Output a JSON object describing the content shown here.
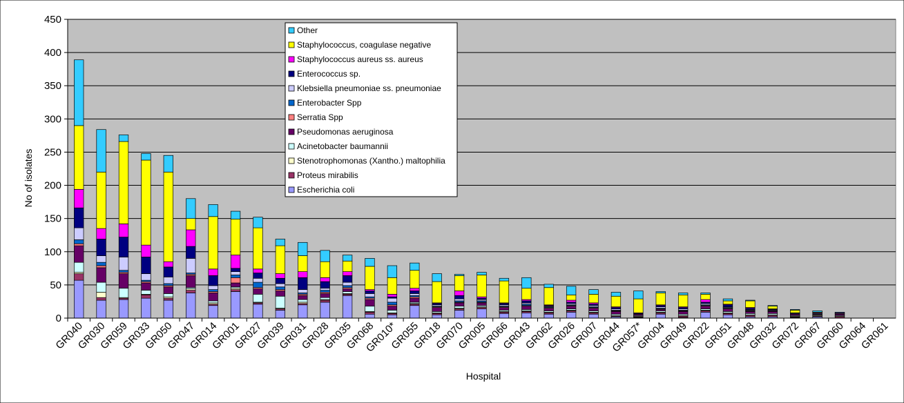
{
  "chart_data": {
    "type": "bar",
    "stacked": true,
    "xlabel": "Hospital",
    "ylabel": "No of isolates",
    "ylim": [
      0,
      450
    ],
    "yticks": [
      0,
      50,
      100,
      150,
      200,
      250,
      300,
      350,
      400,
      450
    ],
    "grid": "horizontal",
    "legend_position": "top-center",
    "categories": [
      "GR040",
      "GR030",
      "GR059",
      "GR033",
      "GR050",
      "GR047",
      "GR014",
      "GR001",
      "GR027",
      "GR039",
      "GR031",
      "GR028",
      "GR035",
      "GR068",
      "GR010*",
      "GR055",
      "GR018",
      "GR070",
      "GR005",
      "GR066",
      "GR043",
      "GR062",
      "GR026",
      "GR007",
      "GR044",
      "GR057*",
      "GR004",
      "GR049",
      "GR022",
      "GR051",
      "GR048",
      "GR032",
      "GR072",
      "GR067",
      "GR060",
      "GR064",
      "GR061"
    ],
    "series": [
      {
        "name": "Escherichia coli",
        "color": "#9999ff",
        "values": [
          57,
          27,
          28,
          30,
          27,
          38,
          19,
          40,
          21,
          12,
          20,
          24,
          34,
          6,
          5,
          19,
          5,
          12,
          14,
          7,
          8,
          6,
          9,
          6,
          2,
          1,
          6,
          1,
          9,
          5,
          2,
          2,
          1,
          2,
          0,
          0,
          0
        ]
      },
      {
        "name": "Proteus mirabilis",
        "color": "#993366",
        "values": [
          10,
          4,
          2,
          5,
          3,
          4,
          2,
          3,
          2,
          2,
          2,
          3,
          2,
          3,
          2,
          2,
          2,
          2,
          2,
          2,
          2,
          2,
          2,
          2,
          1,
          1,
          2,
          2,
          2,
          2,
          2,
          2,
          1,
          1,
          2,
          0,
          0
        ]
      },
      {
        "name": "Stenotrophomonas (Xantho.) maltophilia",
        "color": "#ffffcc",
        "values": [
          2,
          8,
          1,
          1,
          2,
          2,
          2,
          2,
          1,
          1,
          2,
          1,
          1,
          1,
          1,
          1,
          1,
          1,
          1,
          1,
          1,
          1,
          1,
          1,
          1,
          1,
          1,
          1,
          1,
          1,
          1,
          1,
          1,
          1,
          1,
          0,
          0
        ]
      },
      {
        "name": "Acinetobacter baumannii",
        "color": "#ccffff",
        "values": [
          15,
          15,
          14,
          6,
          5,
          2,
          3,
          2,
          12,
          18,
          4,
          3,
          3,
          8,
          4,
          2,
          2,
          3,
          2,
          2,
          2,
          2,
          2,
          2,
          2,
          1,
          2,
          2,
          2,
          2,
          2,
          2,
          1,
          1,
          1,
          0,
          0
        ]
      },
      {
        "name": "Pseudomonas aeruginosa",
        "color": "#660066",
        "values": [
          25,
          22,
          22,
          11,
          10,
          18,
          12,
          6,
          8,
          8,
          6,
          6,
          4,
          10,
          6,
          6,
          6,
          5,
          4,
          4,
          5,
          4,
          4,
          4,
          4,
          2,
          2,
          4,
          4,
          4,
          3,
          3,
          2,
          1,
          2,
          0,
          0
        ]
      },
      {
        "name": "Serratia Spp",
        "color": "#ff8080",
        "values": [
          3,
          3,
          2,
          2,
          2,
          2,
          2,
          8,
          2,
          2,
          2,
          2,
          2,
          2,
          2,
          2,
          1,
          1,
          1,
          1,
          1,
          1,
          1,
          1,
          1,
          0,
          1,
          1,
          1,
          1,
          1,
          1,
          0,
          0,
          0,
          0,
          0
        ]
      },
      {
        "name": "Enterobacter Spp",
        "color": "#0066cc",
        "values": [
          6,
          5,
          3,
          2,
          3,
          2,
          3,
          4,
          8,
          4,
          2,
          3,
          3,
          2,
          4,
          2,
          1,
          2,
          2,
          1,
          2,
          1,
          1,
          1,
          1,
          0,
          1,
          1,
          1,
          1,
          1,
          1,
          0,
          0,
          0,
          0,
          0
        ]
      },
      {
        "name": "Klebsiella pneumoniae ss. pneumoniae",
        "color": "#ccccff",
        "values": [
          18,
          10,
          20,
          10,
          10,
          22,
          6,
          5,
          6,
          5,
          5,
          3,
          5,
          5,
          6,
          3,
          2,
          3,
          2,
          2,
          2,
          1,
          2,
          2,
          2,
          0,
          2,
          2,
          2,
          1,
          1,
          1,
          1,
          1,
          1,
          0,
          0
        ]
      },
      {
        "name": "Enterococcus sp.",
        "color": "#000080",
        "values": [
          30,
          25,
          30,
          25,
          15,
          18,
          15,
          5,
          8,
          8,
          18,
          10,
          10,
          4,
          2,
          4,
          2,
          5,
          2,
          2,
          3,
          1,
          2,
          2,
          2,
          1,
          2,
          2,
          2,
          3,
          2,
          1,
          1,
          0,
          0,
          0,
          0
        ]
      },
      {
        "name": "Staphylococcus aureus ss. aureus",
        "color": "#ff00ff",
        "values": [
          28,
          16,
          20,
          18,
          8,
          25,
          10,
          20,
          6,
          7,
          9,
          6,
          6,
          2,
          4,
          4,
          1,
          7,
          2,
          1,
          2,
          1,
          3,
          2,
          1,
          1,
          1,
          1,
          4,
          1,
          1,
          0,
          0,
          1,
          1,
          0,
          0
        ]
      },
      {
        "name": "Staphylococcus, coagulase negative",
        "color": "#ffff00",
        "values": [
          96,
          85,
          124,
          128,
          135,
          17,
          79,
          54,
          62,
          42,
          24,
          24,
          16,
          35,
          25,
          27,
          32,
          23,
          33,
          33,
          17,
          26,
          8,
          13,
          16,
          21,
          18,
          18,
          8,
          5,
          10,
          4,
          4,
          1,
          0,
          0,
          0
        ]
      },
      {
        "name": "Other",
        "color": "#33ccff",
        "values": [
          99,
          64,
          10,
          10,
          25,
          30,
          18,
          12,
          16,
          10,
          20,
          17,
          9,
          12,
          18,
          11,
          12,
          2,
          4,
          4,
          16,
          5,
          13,
          7,
          6,
          12,
          2,
          3,
          2,
          3,
          1,
          1,
          1,
          2,
          1,
          0,
          0
        ]
      }
    ]
  }
}
